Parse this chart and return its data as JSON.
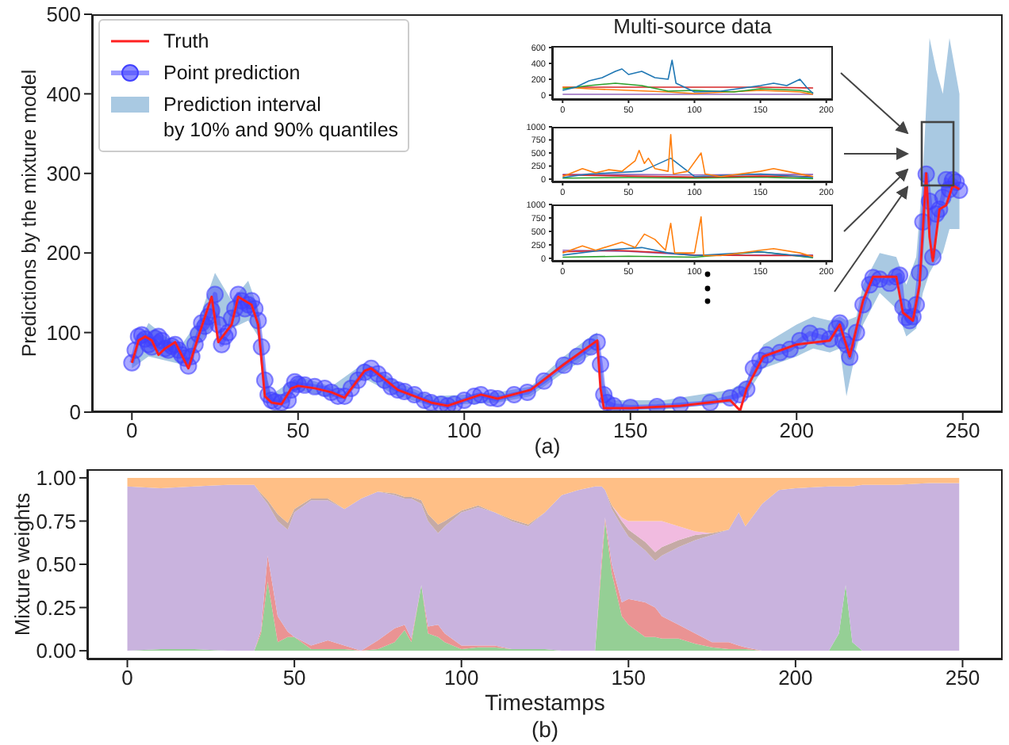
{
  "chart_data": [
    {
      "type": "line",
      "xlabel": "(a)",
      "ylabel": "Predictions by the mixture model",
      "xlim": [
        -12,
        262
      ],
      "xticks": [
        0,
        50,
        100,
        150,
        200,
        250
      ],
      "ylim": [
        0,
        500
      ],
      "yticks": [
        0,
        100,
        200,
        300,
        400,
        500
      ],
      "legend": "top left",
      "series": [
        {
          "name": "Prediction interval\nby 10% and 90% quantiles",
          "type": "area",
          "color": "#a9c9e2",
          "values": [
            null,
            null,
            null,
            null,
            null,
            null,
            null,
            null,
            null,
            null,
            null,
            null,
            null,
            null,
            null,
            null,
            null,
            null,
            null,
            null,
            null,
            null,
            null,
            null,
            null,
            null,
            null,
            null,
            null,
            null,
            null,
            null,
            null,
            null,
            null,
            null,
            null,
            null,
            null,
            null,
            null,
            null,
            null,
            null,
            null
          ],
          "x": [
            0,
            5,
            10,
            15,
            20,
            25,
            30,
            35,
            38,
            40,
            42,
            50,
            60,
            70,
            80,
            90,
            100,
            110,
            120,
            130,
            138,
            140,
            142,
            145,
            160,
            180,
            185,
            190,
            200,
            205,
            210,
            213,
            215,
            218,
            220,
            225,
            230,
            233,
            236,
            238,
            240,
            242,
            244,
            246,
            249
          ],
          "lower": [
            55,
            70,
            65,
            60,
            85,
            110,
            105,
            115,
            95,
            25,
            8,
            28,
            18,
            42,
            20,
            8,
            10,
            12,
            20,
            50,
            72,
            78,
            5,
            2,
            3,
            12,
            22,
            55,
            70,
            80,
            75,
            80,
            20,
            80,
            110,
            150,
            130,
            95,
            105,
            150,
            175,
            190,
            200,
            230,
            230
          ],
          "upper": [
            70,
            112,
            95,
            85,
            115,
            175,
            140,
            165,
            130,
            55,
            22,
            45,
            32,
            62,
            38,
            20,
            22,
            25,
            32,
            70,
            95,
            100,
            35,
            15,
            15,
            28,
            40,
            85,
            110,
            120,
            115,
            120,
            115,
            120,
            160,
            200,
            195,
            160,
            195,
            300,
            470,
            430,
            400,
            470,
            400
          ]
        },
        {
          "name": "Point prediction",
          "color": "#4040ff",
          "marker": "circle",
          "x": [
            0,
            1,
            2,
            3,
            4,
            5,
            6,
            7,
            8,
            9,
            10,
            11,
            12,
            13,
            14,
            15,
            16,
            17,
            18,
            19,
            20,
            21,
            22,
            23,
            24,
            25,
            26,
            27,
            28,
            29,
            30,
            31,
            32,
            33,
            34,
            35,
            36,
            37,
            38,
            39,
            40,
            41,
            42,
            43,
            45,
            47,
            48,
            49,
            50,
            52,
            55,
            58,
            60,
            62,
            64,
            66,
            68,
            70,
            72,
            74,
            76,
            78,
            80,
            82,
            85,
            88,
            90,
            93,
            95,
            97,
            100,
            103,
            105,
            108,
            110,
            115,
            119,
            124,
            130,
            134,
            138,
            140,
            141,
            142,
            143,
            145,
            150,
            158,
            165,
            174,
            180,
            183,
            185,
            187,
            189,
            191,
            195,
            198,
            201,
            204,
            207,
            210,
            212,
            213,
            214,
            215,
            216,
            218,
            220,
            222,
            223,
            225,
            228,
            230,
            231,
            232,
            233,
            234,
            235,
            236,
            237,
            238,
            239,
            240,
            241,
            242,
            243,
            244,
            245,
            246,
            247,
            248,
            249
          ],
          "values": [
            62,
            78,
            95,
            97,
            92,
            85,
            82,
            93,
            95,
            90,
            80,
            78,
            83,
            85,
            78,
            72,
            68,
            58,
            70,
            85,
            98,
            112,
            108,
            120,
            128,
            148,
            110,
            85,
            95,
            100,
            118,
            130,
            148,
            140,
            130,
            135,
            140,
            130,
            115,
            82,
            40,
            22,
            15,
            13,
            12,
            15,
            28,
            38,
            35,
            34,
            32,
            30,
            25,
            20,
            20,
            30,
            40,
            50,
            55,
            48,
            40,
            32,
            28,
            26,
            22,
            15,
            12,
            10,
            8,
            10,
            15,
            20,
            22,
            18,
            17,
            22,
            25,
            39,
            59,
            70,
            82,
            88,
            60,
            22,
            12,
            8,
            6,
            7,
            9,
            12,
            18,
            22,
            29,
            55,
            65,
            72,
            75,
            79,
            90,
            99,
            95,
            92,
            105,
            112,
            90,
            85,
            69,
            100,
            135,
            160,
            169,
            167,
            162,
            170,
            172,
            132,
            119,
            115,
            120,
            135,
            175,
            239,
            299,
            265,
            195,
            249,
            255,
            270,
            292,
            280,
            292,
            289,
            279
          ]
        },
        {
          "name": "Truth",
          "color": "#ff2020",
          "x": [
            0,
            2,
            4,
            6,
            8,
            10,
            13,
            17,
            20,
            24,
            26,
            30,
            32,
            36,
            38,
            40,
            42,
            45,
            48,
            50,
            55,
            60,
            64,
            70,
            72,
            80,
            90,
            95,
            100,
            105,
            110,
            120,
            130,
            140,
            141,
            142,
            150,
            165,
            180,
            183,
            185,
            190,
            200,
            210,
            213,
            216,
            220,
            223,
            230,
            232,
            235,
            237,
            239,
            240,
            241,
            243,
            245,
            247,
            249
          ],
          "values": [
            62,
            90,
            95,
            90,
            72,
            80,
            88,
            55,
            95,
            145,
            88,
            110,
            145,
            135,
            110,
            20,
            12,
            10,
            30,
            33,
            30,
            25,
            18,
            52,
            55,
            28,
            12,
            8,
            15,
            22,
            17,
            28,
            60,
            90,
            30,
            5,
            5,
            8,
            15,
            2,
            30,
            70,
            85,
            90,
            110,
            70,
            140,
            170,
            170,
            125,
            115,
            160,
            300,
            220,
            190,
            255,
            260,
            285,
            280
          ]
        }
      ]
    },
    {
      "type": "line",
      "title": "Multi-source data",
      "xlim": [
        -8,
        205
      ],
      "xticks": [
        0,
        50,
        100,
        150,
        200
      ],
      "ylim": [
        -60,
        620
      ],
      "yticks": [
        0,
        200,
        400,
        600
      ],
      "series": [
        {
          "color": "#d62728",
          "x": [
            0,
            50,
            100,
            150,
            190
          ],
          "values": [
            100,
            100,
            100,
            100,
            90
          ]
        },
        {
          "color": "#9467bd",
          "x": [
            0,
            50,
            100,
            150,
            190
          ],
          "values": [
            10,
            10,
            10,
            10,
            10
          ]
        },
        {
          "color": "#ff7f0e",
          "x": [
            0,
            20,
            50,
            80,
            100,
            150,
            180,
            190
          ],
          "values": [
            100,
            80,
            60,
            40,
            20,
            60,
            40,
            10
          ]
        },
        {
          "color": "#2ca02c",
          "x": [
            0,
            20,
            40,
            60,
            80,
            100,
            130,
            150,
            180,
            190
          ],
          "values": [
            80,
            120,
            150,
            120,
            50,
            60,
            40,
            80,
            60,
            30
          ]
        },
        {
          "color": "#1f77b4",
          "x": [
            0,
            10,
            20,
            30,
            40,
            45,
            50,
            60,
            70,
            80,
            83,
            86,
            95,
            100,
            120,
            150,
            160,
            170,
            180,
            185,
            190
          ],
          "values": [
            60,
            100,
            180,
            220,
            300,
            330,
            260,
            300,
            220,
            200,
            440,
            150,
            80,
            40,
            50,
            120,
            150,
            120,
            200,
            100,
            20
          ]
        }
      ]
    },
    {
      "type": "line",
      "xlim": [
        -8,
        205
      ],
      "xticks": [
        0,
        50,
        100,
        150,
        200
      ],
      "ylim": [
        -60,
        1000
      ],
      "yticks": [
        0,
        250,
        500,
        750,
        1000
      ],
      "series": [
        {
          "color": "#9467bd",
          "x": [
            0,
            50,
            100,
            150,
            190
          ],
          "values": [
            90,
            90,
            80,
            90,
            90
          ]
        },
        {
          "color": "#2ca02c",
          "x": [
            0,
            50,
            100,
            150,
            190
          ],
          "values": [
            20,
            30,
            20,
            40,
            10
          ]
        },
        {
          "color": "#d62728",
          "x": [
            0,
            50,
            100,
            150,
            190
          ],
          "values": [
            80,
            60,
            40,
            60,
            50
          ]
        },
        {
          "color": "#1f77b4",
          "x": [
            0,
            20,
            60,
            82,
            100,
            150,
            190
          ],
          "values": [
            30,
            100,
            150,
            400,
            50,
            100,
            30
          ]
        },
        {
          "color": "#ff7f0e",
          "x": [
            0,
            15,
            25,
            35,
            45,
            55,
            58,
            62,
            65,
            70,
            80,
            82,
            84,
            95,
            105,
            108,
            120,
            150,
            160,
            170,
            190
          ],
          "values": [
            50,
            200,
            120,
            180,
            150,
            350,
            550,
            300,
            400,
            200,
            150,
            850,
            100,
            150,
            500,
            100,
            50,
            150,
            200,
            150,
            50
          ]
        }
      ]
    },
    {
      "type": "line",
      "xlim": [
        -8,
        205
      ],
      "xticks": [
        0,
        50,
        100,
        150,
        200
      ],
      "ylim": [
        -60,
        1000
      ],
      "yticks": [
        0,
        250,
        500,
        750,
        1000
      ],
      "series": [
        {
          "color": "#9467bd",
          "x": [
            0,
            50,
            100,
            150,
            190
          ],
          "values": [
            150,
            130,
            60,
            60,
            60
          ]
        },
        {
          "color": "#2ca02c",
          "x": [
            0,
            50,
            100,
            150,
            190
          ],
          "values": [
            20,
            40,
            20,
            120,
            10
          ]
        },
        {
          "color": "#d62728",
          "x": [
            0,
            40,
            80,
            100,
            150,
            190
          ],
          "values": [
            120,
            150,
            100,
            60,
            50,
            50
          ]
        },
        {
          "color": "#1f77b4",
          "x": [
            0,
            30,
            60,
            80,
            100,
            150,
            190
          ],
          "values": [
            60,
            150,
            200,
            100,
            50,
            120,
            20
          ]
        },
        {
          "color": "#ff7f0e",
          "x": [
            0,
            15,
            25,
            45,
            55,
            62,
            70,
            78,
            82,
            85,
            100,
            105,
            107,
            120,
            150,
            160,
            180,
            190
          ],
          "values": [
            100,
            230,
            150,
            300,
            200,
            450,
            350,
            150,
            650,
            100,
            100,
            770,
            50,
            50,
            150,
            180,
            100,
            30
          ]
        }
      ]
    },
    {
      "type": "area",
      "stacked": true,
      "xlabel": "Timestamps",
      "ylabel": "Mixture weights",
      "annotations": [
        "(b)"
      ],
      "xlim": [
        -12,
        262
      ],
      "xticks": [
        0,
        50,
        100,
        150,
        200,
        250
      ],
      "ylim": [
        -0.05,
        1.05
      ],
      "yticks": [
        {
          "value": 0,
          "label": "0.00"
        },
        {
          "value": 0.25,
          "label": "0.25"
        },
        {
          "value": 0.5,
          "label": "0.50"
        },
        {
          "value": 0.75,
          "label": "0.75"
        },
        {
          "value": 1,
          "label": "1.00"
        }
      ],
      "x": [
        0,
        10,
        20,
        30,
        38,
        40,
        42,
        45,
        48,
        50,
        55,
        60,
        65,
        70,
        75,
        80,
        83,
        85,
        88,
        90,
        93,
        95,
        100,
        105,
        110,
        115,
        120,
        125,
        130,
        135,
        140,
        142,
        143,
        145,
        148,
        150,
        155,
        158,
        160,
        165,
        170,
        175,
        180,
        183,
        185,
        190,
        195,
        200,
        210,
        213,
        215,
        217,
        220,
        230,
        240,
        249
      ],
      "series": [
        {
          "color": "#95cf95",
          "values": [
            0,
            0.01,
            0.01,
            0,
            0,
            0.1,
            0.4,
            0.05,
            0.08,
            0.08,
            0.01,
            0.01,
            0.01,
            0,
            0.01,
            0.05,
            0.12,
            0.05,
            0.38,
            0.1,
            0.08,
            0.05,
            0.01,
            0.02,
            0.02,
            0.01,
            0.01,
            0.01,
            0,
            0,
            0,
            0.5,
            0.75,
            0.45,
            0.2,
            0.15,
            0.08,
            0.08,
            0.07,
            0.07,
            0.04,
            0.02,
            0.01,
            0.01,
            0.01,
            0,
            0,
            0,
            0,
            0.1,
            0.38,
            0.05,
            0,
            0,
            0,
            0
          ]
        },
        {
          "color": "#ea9393",
          "values": [
            0,
            0,
            0,
            0,
            0,
            0.02,
            0.15,
            0.15,
            0.03,
            0,
            0.02,
            0.05,
            0.02,
            0,
            0.05,
            0.08,
            0.03,
            0.02,
            0,
            0.04,
            0.07,
            0.05,
            0.02,
            0.01,
            0.01,
            0,
            0,
            0,
            0,
            0,
            0,
            0.05,
            0.02,
            0.05,
            0.08,
            0.15,
            0.2,
            0.17,
            0.13,
            0.08,
            0.06,
            0.03,
            0.04,
            0.02,
            0.01,
            0,
            0,
            0,
            0,
            0,
            0,
            0,
            0,
            0,
            0,
            0
          ]
        },
        {
          "color": "#c9b3de",
          "values": [
            0.95,
            0.93,
            0.94,
            0.96,
            0.96,
            0.78,
            0.3,
            0.55,
            0.59,
            0.72,
            0.84,
            0.81,
            0.79,
            0.88,
            0.86,
            0.77,
            0.73,
            0.81,
            0.47,
            0.61,
            0.53,
            0.62,
            0.77,
            0.8,
            0.77,
            0.74,
            0.71,
            0.79,
            0.9,
            0.93,
            0.95,
            0.4,
            0.16,
            0.32,
            0.44,
            0.36,
            0.3,
            0.27,
            0.35,
            0.45,
            0.54,
            0.62,
            0.65,
            0.77,
            0.7,
            0.85,
            0.93,
            0.94,
            0.95,
            0.85,
            0.57,
            0.9,
            0.96,
            0.96,
            0.97,
            0.97
          ]
        },
        {
          "color": "#c5aaa5",
          "values": [
            0,
            0,
            0,
            0,
            0,
            0.01,
            0.02,
            0.04,
            0.04,
            0.02,
            0.01,
            0.01,
            0,
            0,
            0,
            0.01,
            0.01,
            0.01,
            0.02,
            0.04,
            0.05,
            0.03,
            0.01,
            0.01,
            0,
            0.01,
            0.01,
            0,
            0,
            0,
            0,
            0,
            0,
            0.02,
            0.03,
            0.04,
            0.05,
            0.05,
            0.05,
            0.04,
            0.03,
            0.01,
            0,
            0,
            0,
            0,
            0,
            0,
            0,
            0,
            0,
            0,
            0,
            0,
            0,
            0
          ]
        },
        {
          "color": "#f1bbe0",
          "values": [
            0,
            0,
            0,
            0,
            0,
            0,
            0,
            0,
            0,
            0,
            0,
            0,
            0,
            0,
            0,
            0,
            0,
            0,
            0,
            0,
            0,
            0,
            0,
            0,
            0,
            0,
            0,
            0,
            0,
            0,
            0,
            0,
            0,
            0,
            0.02,
            0.05,
            0.12,
            0.18,
            0.15,
            0.08,
            0.02,
            0,
            0,
            0,
            0,
            0,
            0,
            0,
            0,
            0,
            0,
            0,
            0,
            0,
            0,
            0
          ]
        },
        {
          "color": "#ffbf86",
          "values": [
            0.05,
            0.06,
            0.05,
            0.04,
            0.04,
            0.09,
            0.13,
            0.21,
            0.26,
            0.18,
            0.12,
            0.12,
            0.18,
            0.12,
            0.08,
            0.09,
            0.11,
            0.11,
            0.13,
            0.21,
            0.27,
            0.25,
            0.19,
            0.16,
            0.2,
            0.24,
            0.27,
            0.2,
            0.1,
            0.07,
            0.05,
            0.05,
            0.07,
            0.16,
            0.23,
            0.25,
            0.25,
            0.25,
            0.25,
            0.28,
            0.31,
            0.32,
            0.3,
            0.2,
            0.28,
            0.15,
            0.07,
            0.06,
            0.05,
            0.05,
            0.05,
            0.05,
            0.04,
            0.04,
            0.03,
            0.03
          ]
        }
      ]
    }
  ]
}
